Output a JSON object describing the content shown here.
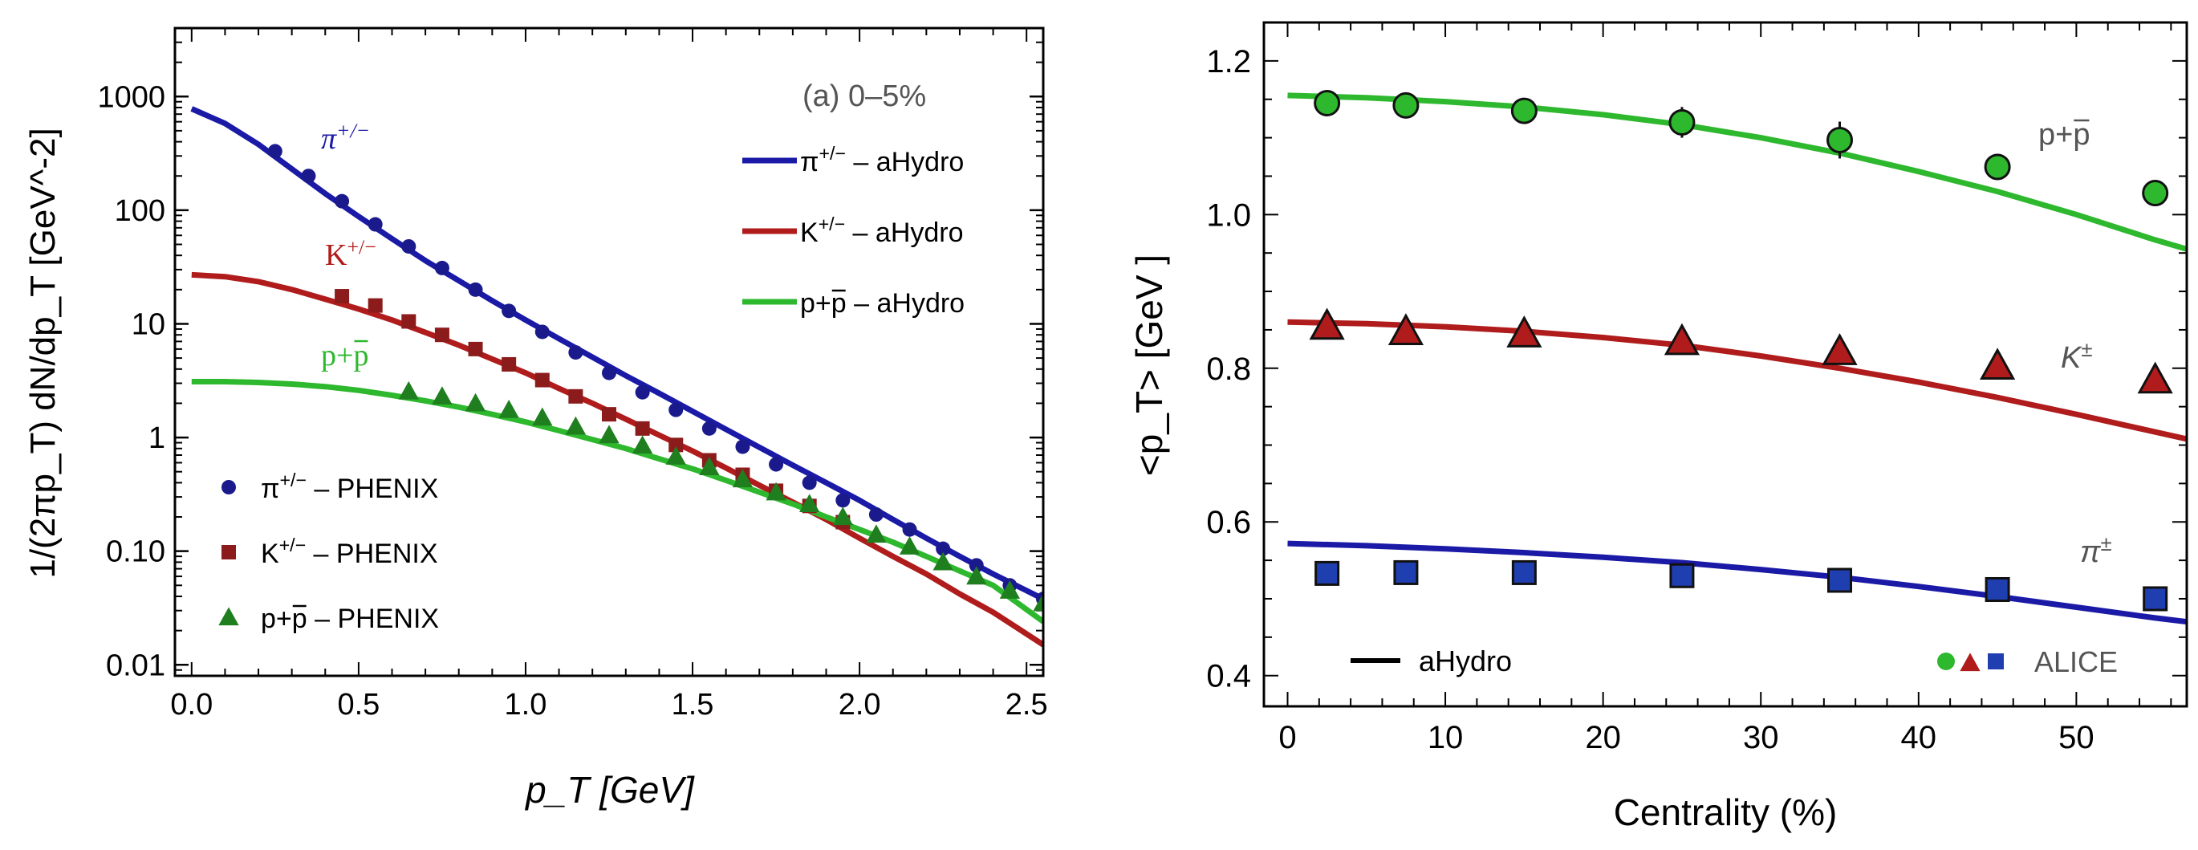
{
  "chart_data": [
    {
      "type": "line",
      "y_scale": "log",
      "xlabel": "p_T [GeV]",
      "ylabel": "1/(2πp_T) dN/dp_T [GeV^-2]",
      "xlim": [
        -0.05,
        2.55
      ],
      "ylim": [
        0.008,
        4000
      ],
      "grid": false,
      "legend_position": "right side, inside plot",
      "x_ticks": [
        "0.0",
        "0.5",
        "1.0",
        "1.5",
        "2.0",
        "2.5"
      ],
      "x_tick_values": [
        0.0,
        0.5,
        1.0,
        1.5,
        2.0,
        2.5
      ],
      "y_ticks": [
        "0.01",
        "0.10",
        "1",
        "10",
        "100",
        "1000"
      ],
      "y_tick_values": [
        0.01,
        0.1,
        1,
        10,
        100,
        1000
      ],
      "annotation": "(a) 0–5%",
      "curve_labels": [
        {
          "series": "pion",
          "parts": [
            "π",
            "+/−"
          ]
        },
        {
          "series": "kaon",
          "parts": [
            "K",
            "+/−"
          ]
        },
        {
          "series": "proton",
          "parts": [
            "p+p",
            ""
          ]
        }
      ],
      "legend": [
        {
          "series": "pion",
          "marker": "line",
          "parts": [
            "π",
            "+/−",
            " – aHydro"
          ]
        },
        {
          "series": "kaon",
          "marker": "line",
          "parts": [
            "K",
            "+/−",
            " – aHydro"
          ]
        },
        {
          "series": "proton",
          "marker": "line",
          "parts": [
            "p+p",
            "",
            " – aHydro"
          ]
        },
        {
          "series": "pion",
          "marker": "circle",
          "parts": [
            "π",
            "+/−",
            " – PHENIX"
          ]
        },
        {
          "series": "kaon",
          "marker": "square",
          "parts": [
            "K",
            "+/−",
            " – PHENIX"
          ]
        },
        {
          "series": "proton",
          "marker": "triangle",
          "parts": [
            "p+p",
            "",
            " – PHENIX"
          ]
        }
      ],
      "series": [
        {
          "id": "pion",
          "source": "aHydro",
          "style": "line",
          "color": "#1a1aa6",
          "x": [
            0.0,
            0.1,
            0.2,
            0.3,
            0.4,
            0.5,
            0.6,
            0.7,
            0.8,
            0.9,
            1.0,
            1.1,
            1.2,
            1.3,
            1.4,
            1.5,
            1.6,
            1.7,
            1.8,
            1.9,
            2.0,
            2.1,
            2.2,
            2.3,
            2.4,
            2.55
          ],
          "y": [
            780,
            580,
            380,
            230,
            140,
            88,
            56,
            36,
            24,
            16,
            10.8,
            7.4,
            5.1,
            3.5,
            2.45,
            1.7,
            1.18,
            0.82,
            0.57,
            0.4,
            0.28,
            0.19,
            0.13,
            0.09,
            0.063,
            0.038
          ]
        },
        {
          "id": "kaon",
          "source": "aHydro",
          "style": "line",
          "color": "#b01c1c",
          "x": [
            0.0,
            0.1,
            0.2,
            0.3,
            0.4,
            0.5,
            0.6,
            0.7,
            0.8,
            0.9,
            1.0,
            1.1,
            1.2,
            1.3,
            1.4,
            1.5,
            1.6,
            1.7,
            1.8,
            1.9,
            2.0,
            2.1,
            2.2,
            2.3,
            2.4,
            2.55
          ],
          "y": [
            27,
            26,
            23.5,
            20,
            16.5,
            13.5,
            10.8,
            8.4,
            6.5,
            4.9,
            3.7,
            2.7,
            2.0,
            1.45,
            1.05,
            0.76,
            0.54,
            0.38,
            0.27,
            0.19,
            0.13,
            0.09,
            0.063,
            0.042,
            0.029,
            0.015
          ]
        },
        {
          "id": "proton",
          "source": "aHydro",
          "style": "line",
          "color": "#2eb82e",
          "x": [
            0.0,
            0.1,
            0.2,
            0.3,
            0.4,
            0.5,
            0.6,
            0.7,
            0.8,
            0.9,
            1.0,
            1.1,
            1.2,
            1.3,
            1.4,
            1.5,
            1.6,
            1.7,
            1.8,
            1.9,
            2.0,
            2.1,
            2.2,
            2.3,
            2.4,
            2.55
          ],
          "y": [
            3.1,
            3.1,
            3.05,
            2.95,
            2.8,
            2.6,
            2.35,
            2.1,
            1.85,
            1.6,
            1.37,
            1.15,
            0.96,
            0.8,
            0.65,
            0.53,
            0.42,
            0.33,
            0.26,
            0.2,
            0.155,
            0.12,
            0.09,
            0.067,
            0.05,
            0.024
          ]
        },
        {
          "id": "pion",
          "source": "PHENIX",
          "style": "circle",
          "color": "#1a1a8c",
          "x": [
            0.25,
            0.35,
            0.45,
            0.55,
            0.65,
            0.75,
            0.85,
            0.95,
            1.05,
            1.15,
            1.25,
            1.35,
            1.45,
            1.55,
            1.65,
            1.75,
            1.85,
            1.95,
            2.05,
            2.15,
            2.25,
            2.35,
            2.45,
            2.55
          ],
          "y": [
            330,
            200,
            120,
            75,
            48,
            31,
            20,
            13,
            8.5,
            5.6,
            3.7,
            2.5,
            1.75,
            1.2,
            0.83,
            0.58,
            0.4,
            0.28,
            0.21,
            0.155,
            0.105,
            0.075,
            0.05,
            0.038
          ]
        },
        {
          "id": "kaon",
          "source": "PHENIX",
          "style": "square",
          "color": "#8c1c1c",
          "x": [
            0.45,
            0.55,
            0.65,
            0.75,
            0.85,
            0.95,
            1.05,
            1.15,
            1.25,
            1.35,
            1.45,
            1.55,
            1.65,
            1.75,
            1.85,
            1.95
          ],
          "y": [
            17.5,
            14.5,
            10.5,
            8.0,
            6.0,
            4.4,
            3.2,
            2.3,
            1.6,
            1.2,
            0.86,
            0.63,
            0.47,
            0.34,
            0.25,
            0.18
          ]
        },
        {
          "id": "proton",
          "source": "PHENIX",
          "style": "triangle",
          "color": "#1f7f1f",
          "x": [
            0.65,
            0.75,
            0.85,
            0.95,
            1.05,
            1.15,
            1.25,
            1.35,
            1.45,
            1.55,
            1.65,
            1.75,
            1.85,
            1.95,
            2.05,
            2.15,
            2.25,
            2.35,
            2.45,
            2.55
          ],
          "y": [
            2.55,
            2.3,
            2.0,
            1.75,
            1.5,
            1.25,
            1.05,
            0.85,
            0.68,
            0.55,
            0.43,
            0.33,
            0.26,
            0.2,
            0.14,
            0.11,
            0.08,
            0.06,
            0.045,
            0.035
          ]
        }
      ]
    },
    {
      "type": "line",
      "xlabel": "Centrality  (%)",
      "ylabel": "<p_T> [GeV ]",
      "xlim": [
        -1.5,
        57
      ],
      "ylim": [
        0.36,
        1.25
      ],
      "grid": false,
      "legend_position": "bottom",
      "x_ticks": [
        "0",
        "10",
        "20",
        "30",
        "40",
        "50"
      ],
      "x_tick_values": [
        0,
        10,
        20,
        30,
        40,
        50
      ],
      "y_ticks": [
        "0.4",
        "0.6",
        "0.8",
        "1.0",
        "1.2"
      ],
      "y_tick_values": [
        0.4,
        0.6,
        0.8,
        1.0,
        1.2
      ],
      "curve_labels": [
        {
          "series": "proton",
          "parts": [
            "p+p",
            ""
          ]
        },
        {
          "series": "kaon",
          "parts": [
            "K",
            "±"
          ]
        },
        {
          "series": "pion",
          "parts": [
            "π",
            "±"
          ]
        }
      ],
      "legend": [
        {
          "marker": "line",
          "label": "aHydro"
        },
        {
          "marker": "circle-triangle-square",
          "label": "ALICE"
        }
      ],
      "series": [
        {
          "id": "proton",
          "source": "aHydro",
          "style": "line",
          "color": "#2eb82e",
          "x": [
            0,
            5,
            10,
            15,
            20,
            25,
            30,
            35,
            40,
            45,
            50,
            55,
            57
          ],
          "y": [
            1.155,
            1.152,
            1.147,
            1.14,
            1.13,
            1.117,
            1.1,
            1.08,
            1.056,
            1.03,
            1.0,
            0.967,
            0.955
          ]
        },
        {
          "id": "kaon",
          "source": "aHydro",
          "style": "line",
          "color": "#b01c1c",
          "x": [
            0,
            5,
            10,
            15,
            20,
            25,
            30,
            35,
            40,
            45,
            50,
            55,
            57
          ],
          "y": [
            0.86,
            0.858,
            0.854,
            0.848,
            0.84,
            0.83,
            0.816,
            0.8,
            0.782,
            0.762,
            0.74,
            0.717,
            0.708
          ]
        },
        {
          "id": "pion",
          "source": "aHydro",
          "style": "line",
          "color": "#1a1aa6",
          "x": [
            0,
            5,
            10,
            15,
            20,
            25,
            30,
            35,
            40,
            45,
            50,
            55,
            57
          ],
          "y": [
            0.572,
            0.569,
            0.565,
            0.56,
            0.554,
            0.547,
            0.538,
            0.528,
            0.516,
            0.503,
            0.489,
            0.475,
            0.47
          ]
        },
        {
          "id": "proton",
          "source": "ALICE",
          "style": "circle",
          "color": "#2eb82e",
          "x": [
            2.5,
            7.5,
            15,
            25,
            35,
            45,
            55
          ],
          "y": [
            1.145,
            1.142,
            1.135,
            1.12,
            1.097,
            1.062,
            1.028
          ],
          "yerr": [
            0.012,
            0.012,
            0.014,
            0.02,
            0.024,
            0.016,
            0.012
          ]
        },
        {
          "id": "kaon",
          "source": "ALICE",
          "style": "triangle",
          "color": "#b01c1c",
          "x": [
            2.5,
            7.5,
            15,
            25,
            35,
            45,
            55
          ],
          "y": [
            0.855,
            0.848,
            0.845,
            0.835,
            0.822,
            0.803,
            0.785
          ],
          "yerr": [
            0,
            0,
            0,
            0,
            0,
            0,
            0
          ]
        },
        {
          "id": "pion",
          "source": "ALICE",
          "style": "square",
          "color": "#1f3fb0",
          "x": [
            2.5,
            7.5,
            15,
            25,
            35,
            45,
            55
          ],
          "y": [
            0.533,
            0.534,
            0.534,
            0.53,
            0.524,
            0.512,
            0.5
          ],
          "yerr": [
            0,
            0,
            0,
            0,
            0,
            0,
            0
          ]
        }
      ]
    }
  ]
}
